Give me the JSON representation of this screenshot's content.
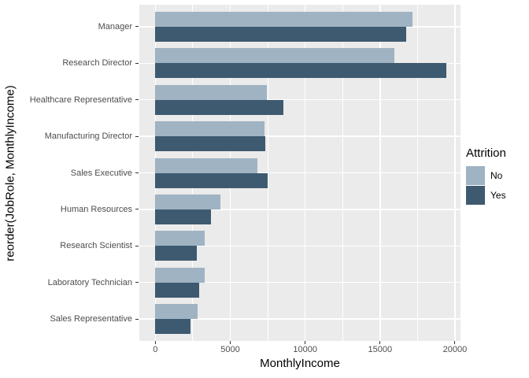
{
  "figure": {
    "background": "#FFFFFF",
    "panel_background": "#EBEBEB",
    "gridline_color": "#FFFFFF",
    "axis_text_color": "#4D4D4D",
    "axis_title_color": "#000000",
    "tick_mark_color": "#333333"
  },
  "chart_data": {
    "type": "bar",
    "orientation": "horizontal",
    "xlabel": "MonthlyIncome",
    "ylabel": "reorder(JobRole, MonthlyIncome)",
    "categories": [
      "Manager",
      "Research Director",
      "Healthcare Representative",
      "Manufacturing Director",
      "Sales Executive",
      "Human Resources",
      "Research Scientist",
      "Laboratory Technician",
      "Sales Representative"
    ],
    "series": [
      {
        "name": "No",
        "color": "#9FB3C3",
        "values": [
          17150,
          15950,
          7450,
          7300,
          6800,
          4350,
          3300,
          3300,
          2800
        ]
      },
      {
        "name": "Yes",
        "color": "#3E5A70",
        "values": [
          16750,
          19400,
          8550,
          7350,
          7500,
          3700,
          2750,
          2900,
          2350
        ]
      }
    ],
    "group_order_top_to_bottom": [
      "Yes",
      "No"
    ],
    "x_ticks": [
      0,
      5000,
      10000,
      15000,
      20000
    ],
    "x_minor_ticks": [
      2500,
      7500,
      12500,
      17500
    ],
    "xlim": [
      -1070,
      20370
    ],
    "grid": true,
    "legend": {
      "title": "Attrition",
      "position": "right",
      "entries": [
        "No",
        "Yes"
      ]
    }
  }
}
